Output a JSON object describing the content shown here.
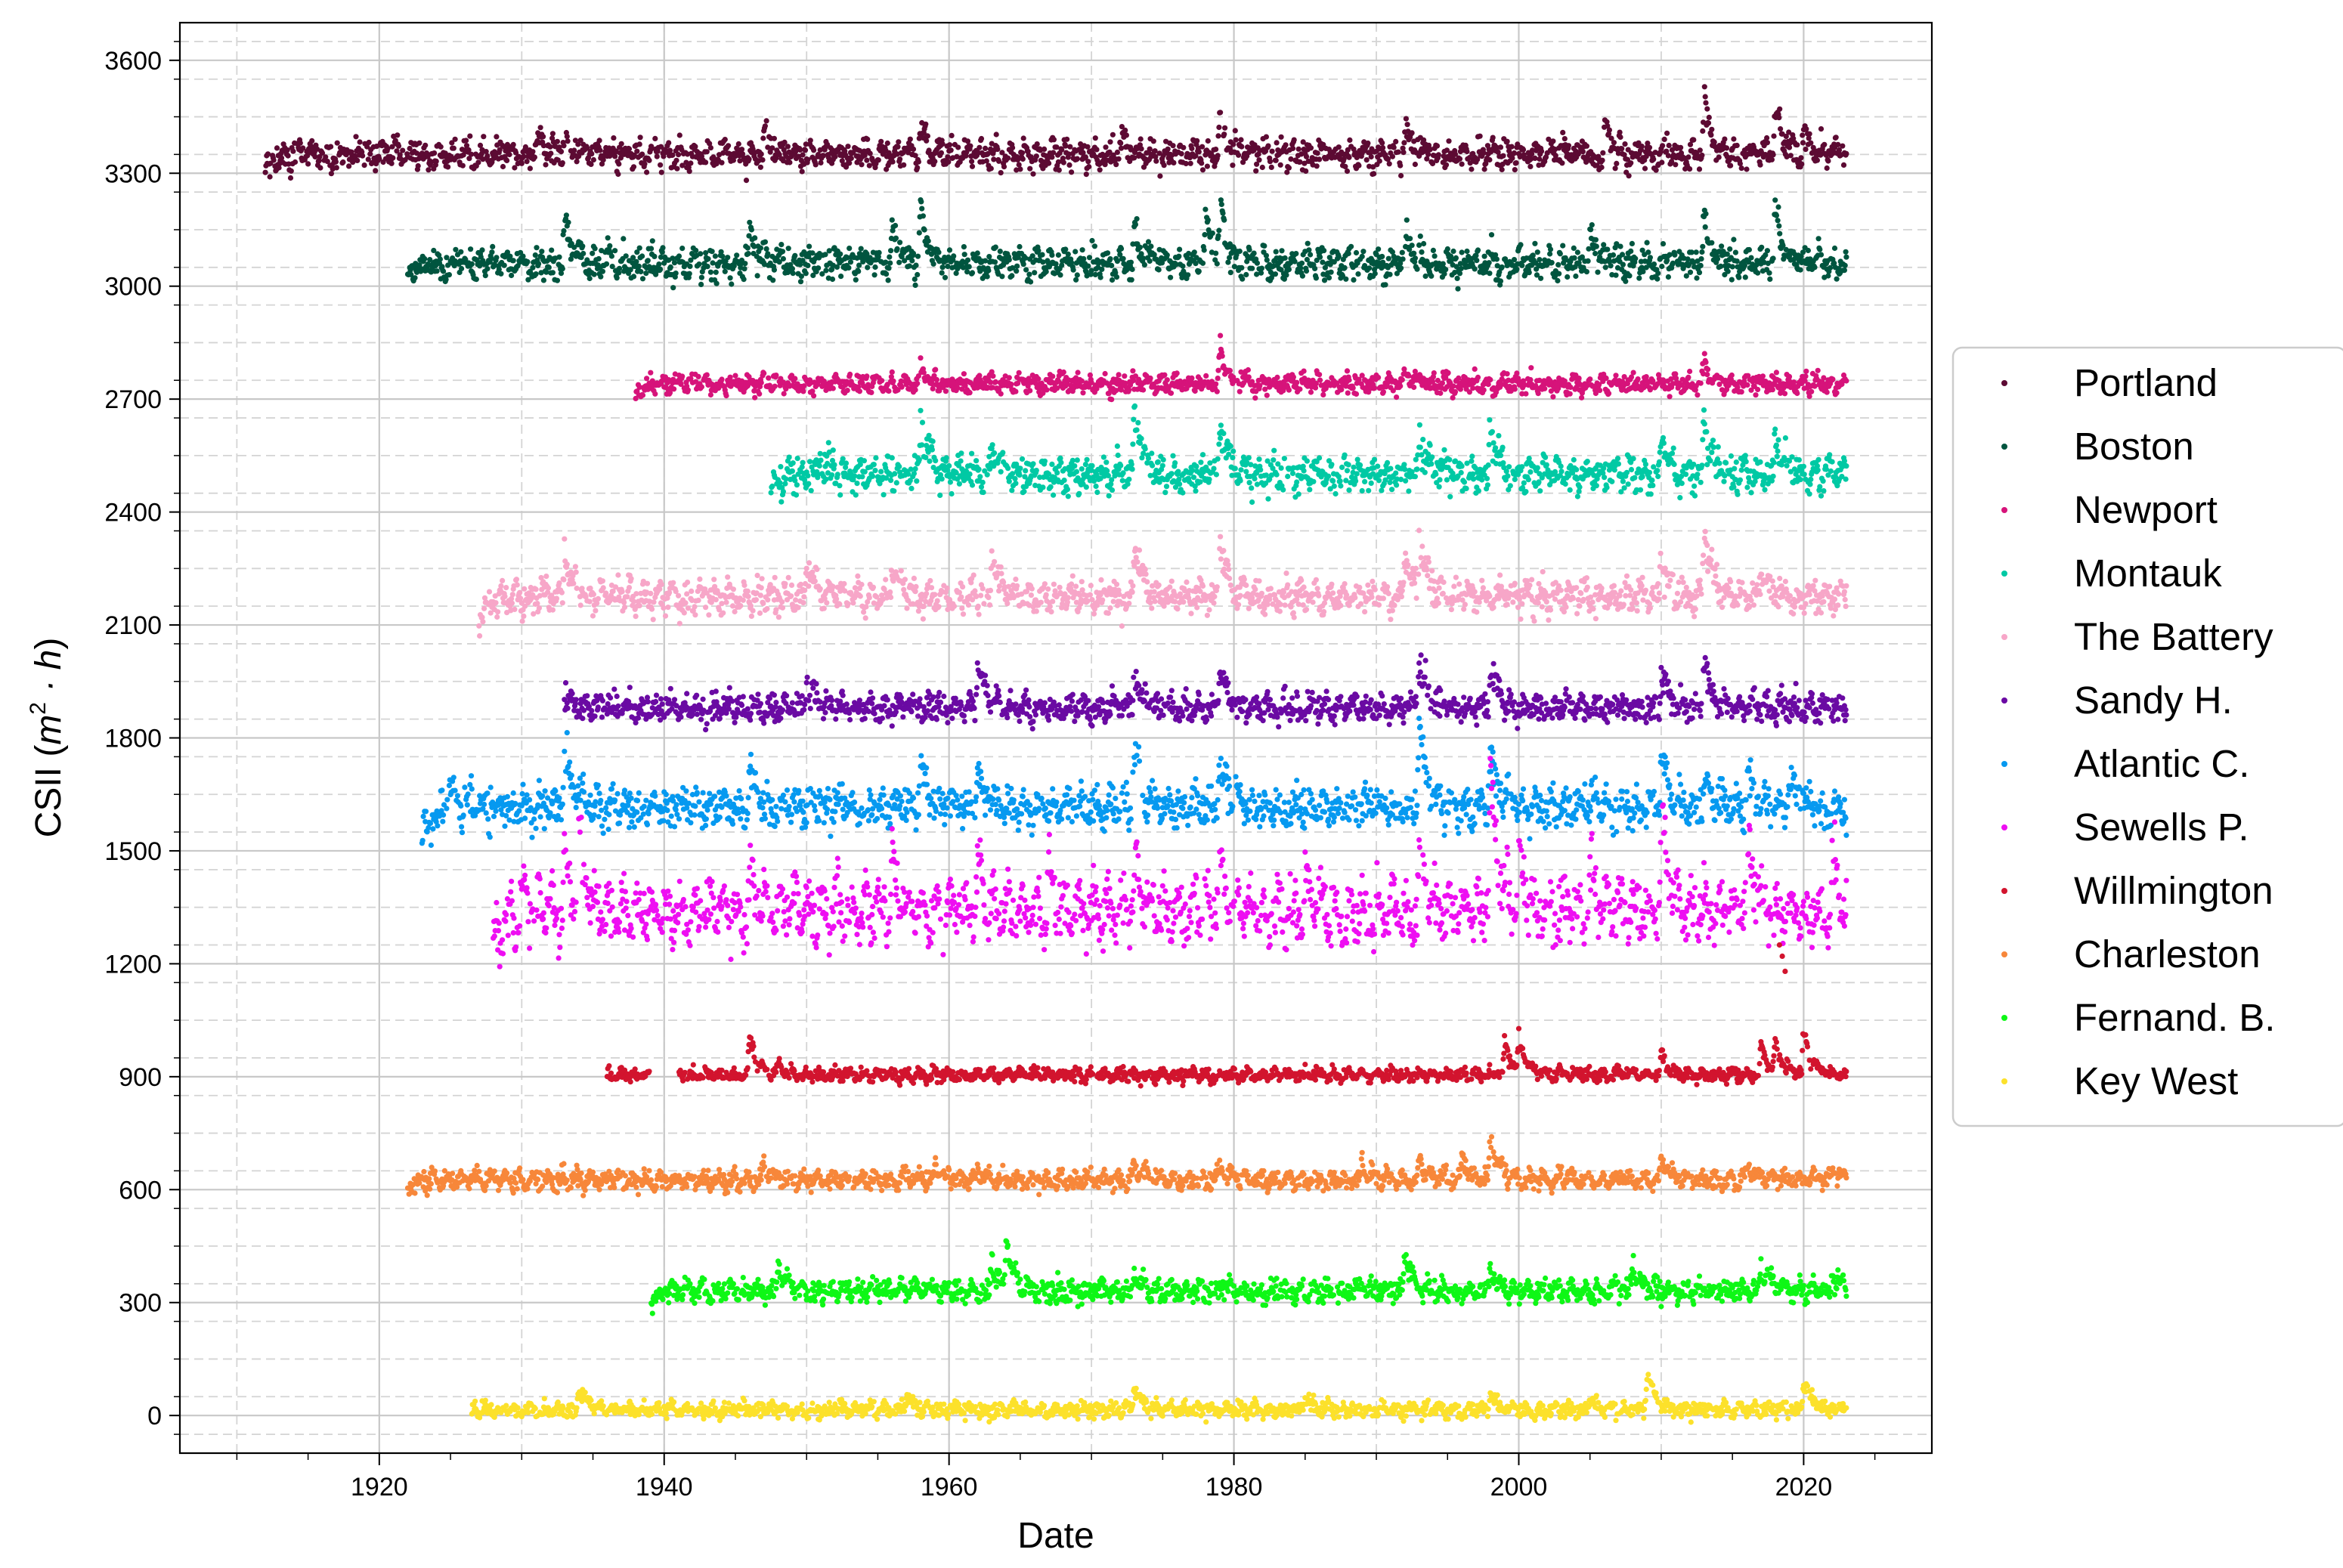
{
  "chart_data": {
    "type": "scatter",
    "title": "",
    "xlabel": "Date",
    "ylabel": "CSII",
    "ylabel_units": "(m² · h)",
    "ylabel_unit_base": "m",
    "ylabel_unit_exp": "2",
    "ylabel_unit_rest": " · h",
    "xlim": [
      1906,
      2029
    ],
    "ylim": [
      -100,
      3700
    ],
    "xticks": [
      1920,
      1940,
      1960,
      1980,
      2000,
      2020
    ],
    "xtick_labels": [
      "1920",
      "1940",
      "1960",
      "1980",
      "2000",
      "2020"
    ],
    "yticks": [
      0,
      300,
      600,
      900,
      1200,
      1500,
      1800,
      2100,
      2400,
      2700,
      3000,
      3300,
      3600
    ],
    "ytick_labels": [
      "0",
      "300",
      "600",
      "900",
      "1200",
      "1500",
      "1800",
      "2100",
      "2400",
      "2700",
      "3000",
      "3300",
      "3600"
    ],
    "grid": true,
    "legend_position": "outside-right",
    "series": [
      {
        "name": "Portland",
        "color": "#5c0a33",
        "start": 1912,
        "end": 2023,
        "base": 3350,
        "noise": 18,
        "seasonal": 15,
        "peaks": [
          [
            1912,
            -40
          ],
          [
            1931,
            55
          ],
          [
            1933,
            45
          ],
          [
            1947,
            60
          ],
          [
            1958,
            65
          ],
          [
            1972,
            50
          ],
          [
            1979,
            120
          ],
          [
            1992,
            55
          ],
          [
            2006,
            90
          ],
          [
            2013,
            145
          ],
          [
            2018,
            125
          ],
          [
            2020,
            60
          ]
        ]
      },
      {
        "name": "Boston",
        "color": "#00553f",
        "start": 1922,
        "end": 2023,
        "base": 3060,
        "noise": 20,
        "seasonal": 15,
        "peaks": [
          [
            1922,
            -60
          ],
          [
            1933,
            130
          ],
          [
            1946,
            70
          ],
          [
            1956,
            100
          ],
          [
            1958,
            170
          ],
          [
            1973,
            120
          ],
          [
            1978,
            140
          ],
          [
            1979,
            140
          ],
          [
            1992,
            80
          ],
          [
            2005,
            90
          ],
          [
            2013,
            140
          ],
          [
            2018,
            160
          ]
        ]
      },
      {
        "name": "Newport",
        "color": "#d6137a",
        "start": 1938,
        "end": 2023,
        "base": 2740,
        "noise": 12,
        "seasonal": 10,
        "peaks": [
          [
            1938,
            -30
          ],
          [
            1958,
            40
          ],
          [
            1979,
            100
          ],
          [
            1992,
            40
          ],
          [
            2013,
            65
          ]
        ]
      },
      {
        "name": "Montauk",
        "color": "#00c9a4",
        "start": 1947.5,
        "end": 2023,
        "base": 2500,
        "noise": 22,
        "seasonal": 18,
        "peaks": [
          [
            1947.5,
            -40
          ],
          [
            1951,
            60
          ],
          [
            1958,
            190
          ],
          [
            1963,
            80
          ],
          [
            1973,
            220
          ],
          [
            1979,
            150
          ],
          [
            1993,
            110
          ],
          [
            1998,
            160
          ],
          [
            2010,
            110
          ],
          [
            2013,
            170
          ],
          [
            2018,
            140
          ]
        ]
      },
      {
        "name": "The Battery",
        "color": "#f7a6c8",
        "start": 1927,
        "end": 2023,
        "base": 2175,
        "noise": 20,
        "seasonal": 18,
        "peaks": [
          [
            1927,
            -70
          ],
          [
            1933,
            130
          ],
          [
            1950,
            100
          ],
          [
            1956,
            90
          ],
          [
            1963,
            110
          ],
          [
            1973,
            150
          ],
          [
            1979,
            160
          ],
          [
            1992,
            120
          ],
          [
            1993,
            140
          ],
          [
            2010,
            120
          ],
          [
            2013,
            200
          ],
          [
            2017,
            80
          ]
        ]
      },
      {
        "name": "Sandy H.",
        "color": "#6a0aa3",
        "start": 1933,
        "end": 2023,
        "base": 1880,
        "noise": 18,
        "seasonal": 15,
        "peaks": [
          [
            1933,
            50
          ],
          [
            1950,
            70
          ],
          [
            1962,
            120
          ],
          [
            1973,
            100
          ],
          [
            1979,
            120
          ],
          [
            1993,
            150
          ],
          [
            1998,
            110
          ],
          [
            2010,
            100
          ],
          [
            2013,
            130
          ]
        ]
      },
      {
        "name": "Atlantic C.",
        "color": "#0699f0",
        "start": 1923,
        "end": 2023,
        "base": 1615,
        "noise": 25,
        "seasonal": 20,
        "peaks": [
          [
            1923,
            -100
          ],
          [
            1925,
            70
          ],
          [
            1933,
            180
          ],
          [
            1946,
            120
          ],
          [
            1958,
            120
          ],
          [
            1962,
            110
          ],
          [
            1973,
            160
          ],
          [
            1979,
            140
          ],
          [
            1993,
            240
          ],
          [
            1998,
            150
          ],
          [
            2010,
            160
          ],
          [
            2013,
            100
          ],
          [
            2016,
            120
          ],
          [
            2019,
            100
          ]
        ]
      },
      {
        "name": "Sewells P.",
        "color": "#ee0ef2",
        "start": 1928,
        "end": 2023,
        "base": 1340,
        "noise": 35,
        "seasonal": 45,
        "peaks": [
          [
            1928,
            -140
          ],
          [
            1930,
            60
          ],
          [
            1933,
            140
          ],
          [
            1934,
            230
          ],
          [
            1946,
            120
          ],
          [
            1956,
            140
          ],
          [
            1962,
            130
          ],
          [
            1967,
            100
          ],
          [
            1973,
            120
          ],
          [
            1979,
            130
          ],
          [
            1985,
            90
          ],
          [
            1993,
            160
          ],
          [
            1998,
            380
          ],
          [
            2000,
            160
          ],
          [
            2005,
            110
          ],
          [
            2010,
            320
          ],
          [
            2016,
            200
          ],
          [
            2022,
            140
          ]
        ]
      },
      {
        "name": "Willmington",
        "color": "#d2142e",
        "start": 1936,
        "end": 2023,
        "base": 905,
        "noise": 8,
        "seasonal": 8,
        "peaks": [
          [
            1946,
            110
          ],
          [
            1948,
            30
          ],
          [
            1999,
            90
          ],
          [
            2000,
            90
          ],
          [
            2010,
            60
          ],
          [
            2017,
            90
          ],
          [
            2018,
            80
          ],
          [
            2020,
            130
          ]
        ],
        "gaps": [
          [
            1939,
            1941
          ]
        ],
        "extra_points": [
          [
            2018.3,
            1250
          ],
          [
            2018.5,
            1220
          ],
          [
            2018.7,
            1180
          ]
        ]
      },
      {
        "name": "Charleston",
        "color": "#f7873a",
        "start": 1922,
        "end": 2023,
        "base": 625,
        "noise": 12,
        "seasonal": 12,
        "peaks": [
          [
            1922,
            -20
          ],
          [
            1947,
            40
          ],
          [
            1959,
            50
          ],
          [
            1962,
            40
          ],
          [
            1973,
            50
          ],
          [
            1979,
            40
          ],
          [
            1989,
            50
          ],
          [
            1993,
            60
          ],
          [
            1996,
            70
          ],
          [
            1998,
            120
          ],
          [
            2010,
            80
          ],
          [
            2016,
            50
          ],
          [
            2022,
            30
          ]
        ]
      },
      {
        "name": "Fernand. B.",
        "color": "#0ef716",
        "start": 1939,
        "end": 2023,
        "base": 330,
        "noise": 14,
        "seasonal": 12,
        "peaks": [
          [
            1939,
            -25
          ],
          [
            1948,
            80
          ],
          [
            1963,
            90
          ],
          [
            1964,
            150
          ],
          [
            1973,
            50
          ],
          [
            1979,
            30
          ],
          [
            1992,
            100
          ],
          [
            1998,
            70
          ],
          [
            2008,
            80
          ],
          [
            2017,
            80
          ],
          [
            2022,
            60
          ]
        ]
      },
      {
        "name": "Key West",
        "color": "#fce12b",
        "start": 1926.5,
        "end": 2023,
        "base": 15,
        "noise": 10,
        "seasonal": 8,
        "peaks": [
          [
            1934,
            70
          ],
          [
            1957,
            40
          ],
          [
            1973,
            60
          ],
          [
            1985,
            40
          ],
          [
            1998,
            40
          ],
          [
            2005,
            40
          ],
          [
            2009,
            110
          ],
          [
            2020,
            90
          ]
        ]
      }
    ]
  }
}
